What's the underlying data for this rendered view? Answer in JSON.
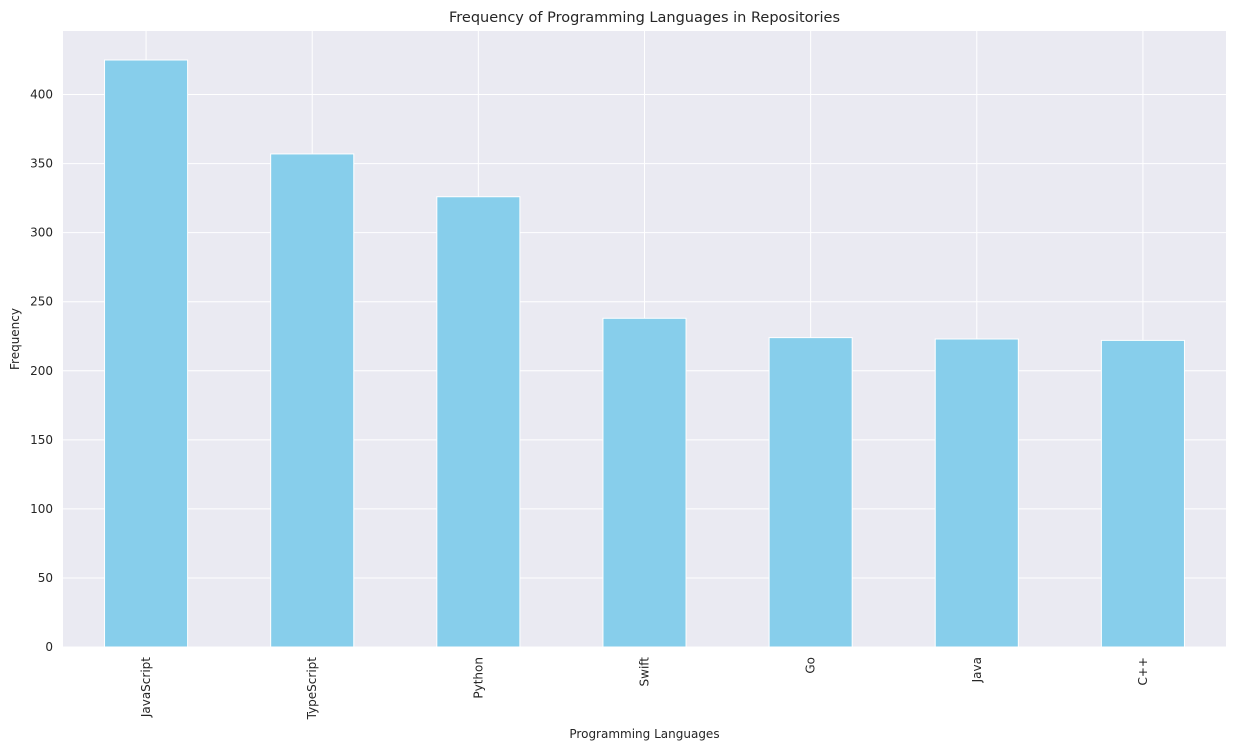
{
  "chart_data": {
    "type": "bar",
    "title": "Frequency of Programming Languages in Repositories",
    "xlabel": "Programming Languages",
    "ylabel": "Frequency",
    "categories": [
      "JavaScript",
      "TypeScript",
      "Python",
      "Swift",
      "Go",
      "Java",
      "C++"
    ],
    "values": [
      425,
      357,
      326,
      238,
      224,
      223,
      222
    ],
    "ylim": [
      0,
      446
    ],
    "yticks": [
      0,
      50,
      100,
      150,
      200,
      250,
      300,
      350,
      400
    ],
    "grid": true,
    "legend": "none",
    "colors": {
      "bar": "#87CEEB",
      "background": "#EAEAF2",
      "grid": "#FFFFFF",
      "text": "#262626"
    }
  }
}
